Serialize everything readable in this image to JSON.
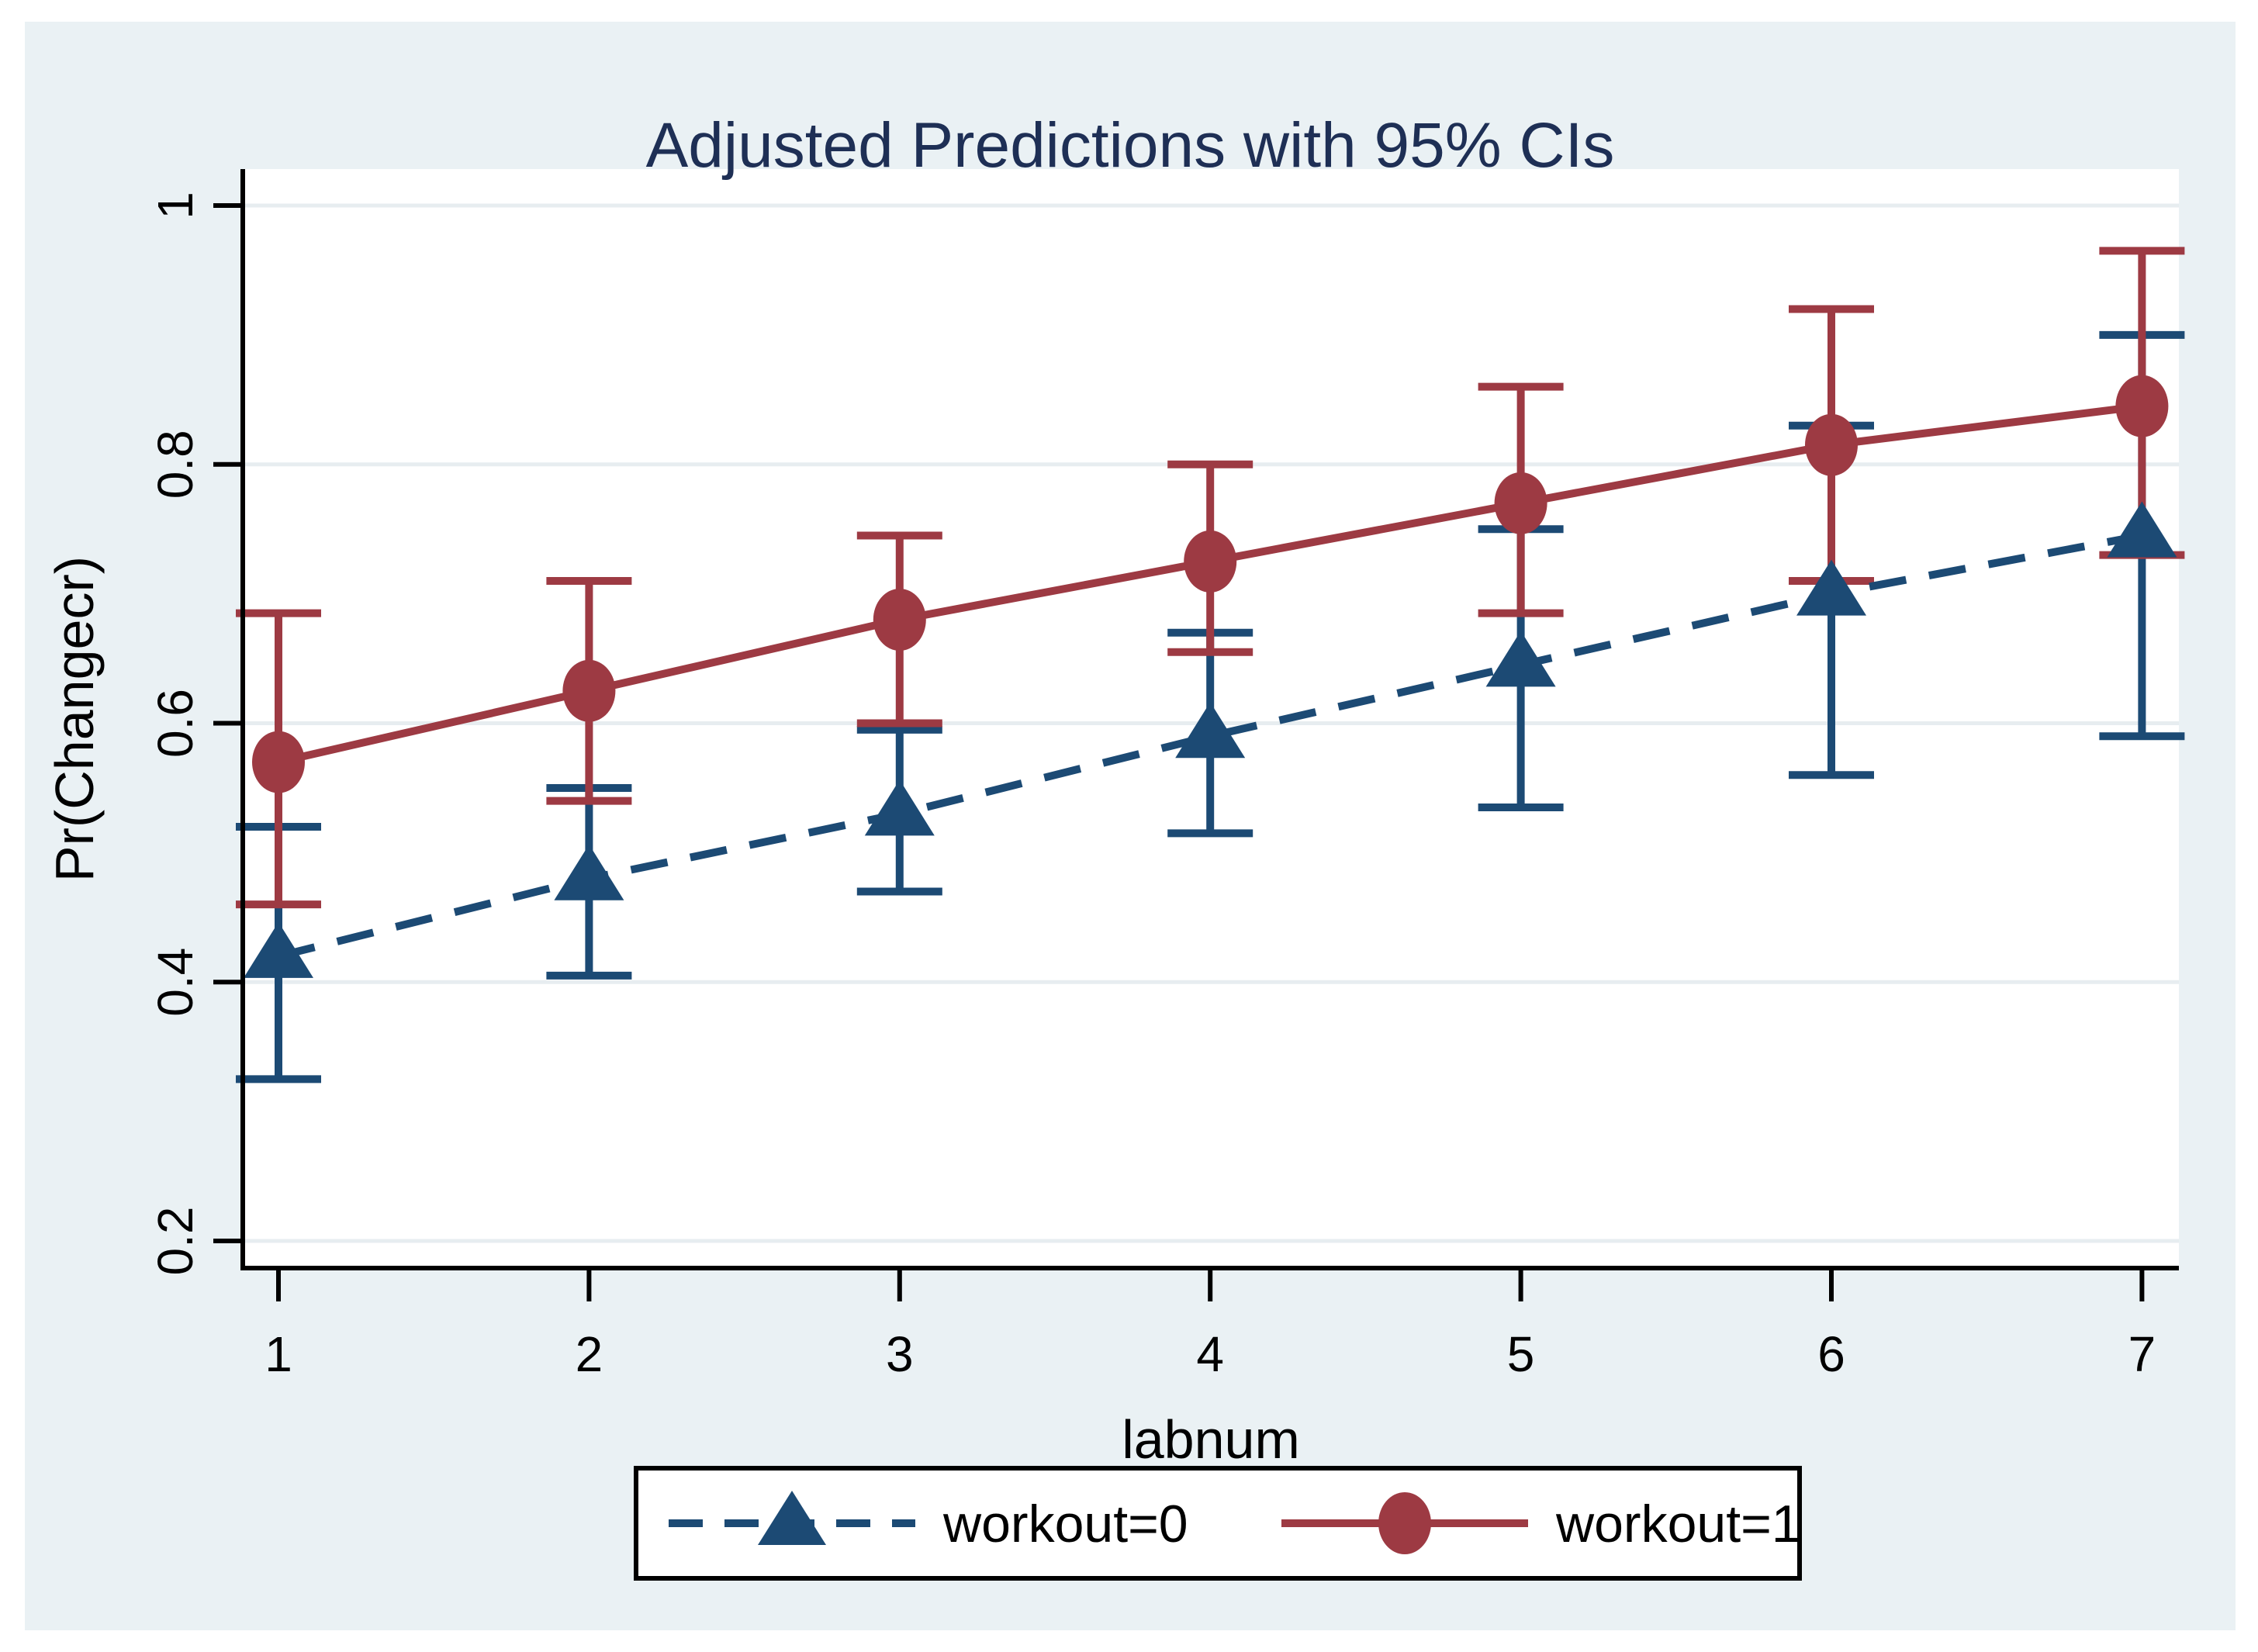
{
  "title": "Adjusted Predictions with 95% CIs",
  "colors": {
    "figure_background": "#eaf1f4",
    "plot_background": "#ffffff",
    "gridline": "#e7edf0",
    "axis": "#000000",
    "title_text": "#1e2f55",
    "workout0": "#1c4a74",
    "workout1": "#9d3a43",
    "legend_border": "#000000",
    "legend_background": "#ffffff"
  },
  "legend": {
    "entries": [
      {
        "label": "workout=0",
        "marker": "triangle",
        "line": "dashed",
        "color": "#1c4a74"
      },
      {
        "label": "workout=1",
        "marker": "circle",
        "line": "solid",
        "color": "#9d3a43"
      }
    ],
    "position": "bottom-center"
  },
  "chart_data": {
    "type": "line",
    "title": "Adjusted Predictions with 95% CIs",
    "xlabel": "labnum",
    "ylabel": "Pr(Changecr)",
    "x": [
      1,
      2,
      3,
      4,
      5,
      6,
      7
    ],
    "xtick_labels": [
      "1",
      "2",
      "3",
      "4",
      "5",
      "6",
      "7"
    ],
    "yticks": [
      0.2,
      0.4,
      0.6,
      0.8,
      1
    ],
    "ytick_labels": [
      "0.2",
      "0.4",
      "0.6",
      "0.8",
      "1"
    ],
    "xlim": [
      1,
      7
    ],
    "ylim": [
      0.2,
      1.0
    ],
    "grid": "horizontal",
    "legend_position": "bottom",
    "series": [
      {
        "name": "workout=0",
        "color": "#1c4a74",
        "marker": "triangle",
        "line_style": "dashed",
        "values": [
          0.42,
          0.48,
          0.53,
          0.59,
          0.645,
          0.7,
          0.745
        ],
        "ci_lower": [
          0.325,
          0.405,
          0.47,
          0.515,
          0.535,
          0.56,
          0.59
        ],
        "ci_upper": [
          0.52,
          0.55,
          0.595,
          0.67,
          0.75,
          0.83,
          0.9
        ]
      },
      {
        "name": "workout=1",
        "color": "#9d3a43",
        "marker": "circle",
        "line_style": "solid",
        "values": [
          0.57,
          0.625,
          0.68,
          0.725,
          0.77,
          0.815,
          0.845
        ],
        "ci_lower": [
          0.46,
          0.54,
          0.6,
          0.655,
          0.685,
          0.71,
          0.73
        ],
        "ci_upper": [
          0.685,
          0.71,
          0.745,
          0.8,
          0.86,
          0.92,
          0.965
        ]
      }
    ]
  }
}
